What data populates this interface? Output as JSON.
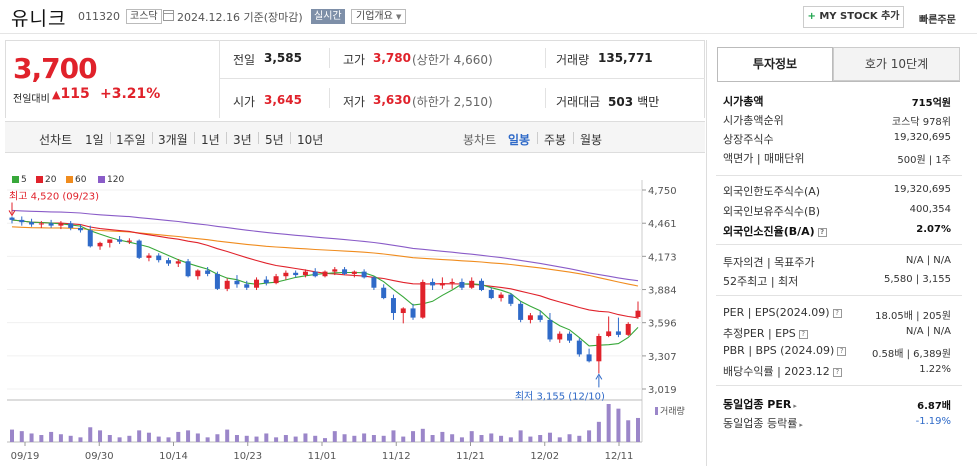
{
  "header": {
    "name": "유니크",
    "code": "011320",
    "market": "코스닥",
    "date": "2024.12.16",
    "date_suffix": "기준(장마감)",
    "realtime": "실시간",
    "company": "기업개요",
    "mystock": "MY STOCK 추가",
    "quick": "빠른주문"
  },
  "price": {
    "current": "3,700",
    "change_label": "전일대비",
    "change_value": "115",
    "change_pct": "+3.21%",
    "prev_label": "전일",
    "prev": "3,585",
    "high_label": "고가",
    "high": "3,780",
    "high_limit": "(상한가 4,660)",
    "volume_label": "거래량",
    "volume": "135,771",
    "open_label": "시가",
    "open": "3,645",
    "low_label": "저가",
    "low": "3,630",
    "low_limit": "(하한가 2,510)",
    "amount_label": "거래대금",
    "amount": "503",
    "amount_unit": "백만"
  },
  "periods": {
    "line": "선차트",
    "items": [
      "1일",
      "1주일",
      "3개월",
      "1년",
      "3년",
      "5년",
      "10년"
    ],
    "candle": "봉차트",
    "candle_items": [
      "일봉",
      "주봉",
      "월봉"
    ],
    "active": "일봉"
  },
  "chart_data": {
    "type": "candlestick",
    "moving_averages": [
      "5",
      "20",
      "60",
      "120"
    ],
    "ma_colors": {
      "5": "#38a83a",
      "20": "#e0222b",
      "60": "#f08c1e",
      "120": "#8a5cc8"
    },
    "y_ticks": [
      "4,750",
      "4,461",
      "4,173",
      "3,884",
      "3,596",
      "3,307",
      "3,019"
    ],
    "x_ticks": [
      "09/19",
      "09/30",
      "10/14",
      "10/23",
      "11/01",
      "11/12",
      "11/21",
      "12/02",
      "12/11"
    ],
    "high_annotation": "최고 4,520 (09/23)",
    "low_annotation": "최저 3,155 (12/10)",
    "volume_label": "거래량",
    "candles": [
      [
        4510,
        4520,
        4460,
        4490
      ],
      [
        4490,
        4520,
        4440,
        4470
      ],
      [
        4470,
        4500,
        4430,
        4450
      ],
      [
        4450,
        4480,
        4420,
        4460
      ],
      [
        4460,
        4490,
        4420,
        4440
      ],
      [
        4440,
        4480,
        4410,
        4460
      ],
      [
        4460,
        4480,
        4400,
        4420
      ],
      [
        4420,
        4450,
        4380,
        4400
      ],
      [
        4400,
        4440,
        4250,
        4260
      ],
      [
        4260,
        4300,
        4230,
        4290
      ],
      [
        4290,
        4320,
        4250,
        4320
      ],
      [
        4320,
        4350,
        4280,
        4300
      ],
      [
        4300,
        4330,
        4280,
        4310
      ],
      [
        4310,
        4320,
        4150,
        4160
      ],
      [
        4160,
        4200,
        4130,
        4180
      ],
      [
        4180,
        4200,
        4120,
        4140
      ],
      [
        4140,
        4160,
        4090,
        4110
      ],
      [
        4110,
        4150,
        4080,
        4130
      ],
      [
        4130,
        4150,
        3990,
        4000
      ],
      [
        4000,
        4060,
        3970,
        4050
      ],
      [
        4050,
        4080,
        4000,
        4020
      ],
      [
        4020,
        4040,
        3880,
        3890
      ],
      [
        3890,
        3980,
        3870,
        3960
      ],
      [
        3960,
        4010,
        3900,
        3930
      ],
      [
        3930,
        3960,
        3880,
        3900
      ],
      [
        3900,
        3990,
        3880,
        3970
      ],
      [
        3970,
        4000,
        3920,
        3940
      ],
      [
        3940,
        4020,
        3930,
        4000
      ],
      [
        4000,
        4050,
        3970,
        4030
      ],
      [
        4030,
        4050,
        3990,
        4010
      ],
      [
        4010,
        4060,
        3990,
        4040
      ],
      [
        4040,
        4070,
        3990,
        4000
      ],
      [
        4000,
        4050,
        3990,
        4040
      ],
      [
        4040,
        4080,
        4010,
        4060
      ],
      [
        4060,
        4080,
        4010,
        4020
      ],
      [
        4020,
        4050,
        3990,
        4040
      ],
      [
        4040,
        4060,
        3980,
        3990
      ],
      [
        3990,
        4000,
        3880,
        3900
      ],
      [
        3900,
        3930,
        3800,
        3810
      ],
      [
        3810,
        3840,
        3620,
        3680
      ],
      [
        3680,
        3730,
        3590,
        3720
      ],
      [
        3720,
        3760,
        3620,
        3640
      ],
      [
        3640,
        3970,
        3630,
        3950
      ],
      [
        3950,
        3980,
        3880,
        3920
      ],
      [
        3920,
        3990,
        3890,
        3940
      ],
      [
        3940,
        3980,
        3890,
        3950
      ],
      [
        3950,
        3980,
        3880,
        3900
      ],
      [
        3900,
        3990,
        3890,
        3960
      ],
      [
        3960,
        3980,
        3870,
        3880
      ],
      [
        3880,
        3900,
        3800,
        3810
      ],
      [
        3810,
        3860,
        3780,
        3840
      ],
      [
        3840,
        3850,
        3740,
        3760
      ],
      [
        3760,
        3780,
        3600,
        3620
      ],
      [
        3620,
        3680,
        3590,
        3660
      ],
      [
        3660,
        3700,
        3600,
        3620
      ],
      [
        3620,
        3680,
        3430,
        3450
      ],
      [
        3450,
        3520,
        3420,
        3500
      ],
      [
        3500,
        3520,
        3420,
        3440
      ],
      [
        3440,
        3460,
        3300,
        3320
      ],
      [
        3320,
        3370,
        3250,
        3260
      ],
      [
        3260,
        3500,
        3155,
        3480
      ],
      [
        3480,
        3650,
        3470,
        3520
      ],
      [
        3520,
        3640,
        3470,
        3490
      ],
      [
        3490,
        3600,
        3480,
        3585
      ],
      [
        3645,
        3780,
        3630,
        3700
      ]
    ],
    "volumes": [
      32,
      28,
      22,
      18,
      26,
      20,
      16,
      12,
      38,
      30,
      18,
      12,
      16,
      30,
      24,
      14,
      12,
      26,
      30,
      22,
      12,
      20,
      32,
      18,
      16,
      14,
      22,
      12,
      18,
      14,
      22,
      16,
      10,
      28,
      20,
      16,
      22,
      18,
      16,
      30,
      14,
      28,
      34,
      18,
      26,
      20,
      12,
      28,
      18,
      22,
      16,
      12,
      30,
      14,
      18,
      24,
      12,
      20,
      16,
      30,
      52,
      98,
      86,
      56,
      62
    ]
  },
  "panel": {
    "tab_active": "투자정보",
    "tab_other": "호가 10단계",
    "rows1": [
      {
        "label": "시가총액",
        "value": "715억원",
        "bold": true
      },
      {
        "label": "시가총액순위",
        "value": "코스닥 978위"
      },
      {
        "label": "상장주식수",
        "value": "19,320,695"
      },
      {
        "label": "액면가 | 매매단위",
        "value": "500원 | 1주"
      }
    ],
    "rows2": [
      {
        "label": "외국인한도주식수(A)",
        "value": "19,320,695"
      },
      {
        "label": "외국인보유주식수(B)",
        "value": "400,354"
      },
      {
        "label": "외국인소진율(B/A)",
        "value": "2.07%",
        "bold": true
      }
    ],
    "rows3": [
      {
        "label": "투자의견 | 목표주가",
        "value": "N/A | N/A"
      },
      {
        "label": "52주최고 | 최저",
        "value": "5,580 | 3,155"
      }
    ],
    "rows4": [
      {
        "label": "PER | EPS(2024.09)",
        "value": "18.05배 | 205원"
      },
      {
        "label": "추정PER | EPS",
        "value": "N/A | N/A"
      },
      {
        "label": "PBR | BPS (2024.09)",
        "value": "0.58배 | 6,389원"
      },
      {
        "label": "배당수익률 | 2023.12",
        "value": "1.22%"
      }
    ],
    "rows5": [
      {
        "label": "동일업종 PER",
        "value": "6.87배",
        "bold": true
      },
      {
        "label": "동일업종 등락률",
        "value": "-1.19%",
        "blue": true
      }
    ]
  }
}
